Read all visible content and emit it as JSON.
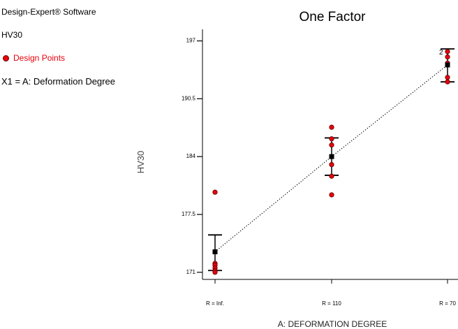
{
  "panel": {
    "software": "Design-Expert® Software",
    "response": "HV30",
    "legend_label": "Design Points",
    "factor": "X1 = A: Deformation Degree"
  },
  "chart_data": {
    "type": "scatter",
    "title": "One Factor",
    "xlabel": "A:  DEFORMATION DEGREE",
    "ylabel": "HV30",
    "categories": [
      "R = Inf.",
      "R = 110",
      "R = 70"
    ],
    "y_ticks": [
      "197",
      "190.5",
      "184",
      "177.5",
      "171"
    ],
    "ylim": [
      170.2,
      198.3
    ],
    "colors": {
      "points": "#e8000b",
      "mean": "#000000"
    },
    "design_points": [
      {
        "category": "R = Inf.",
        "values": [
          180.0,
          172.0,
          171.8,
          171.5,
          171.2,
          171.0
        ]
      },
      {
        "category": "R = 110",
        "values": [
          187.3,
          186.0,
          185.3,
          183.1,
          181.8,
          179.7
        ]
      },
      {
        "category": "R = 70",
        "values": [
          195.8,
          195.2,
          194.5,
          192.9,
          192.4
        ]
      }
    ],
    "point_count_labels": [
      {
        "category": "R = 70",
        "value": 195.8,
        "label": "2"
      }
    ],
    "prediction": {
      "mean": [
        173.3,
        184.0,
        194.3
      ],
      "lower": [
        171.2,
        181.9,
        192.4
      ],
      "upper": [
        175.2,
        186.1,
        196.1
      ]
    }
  }
}
